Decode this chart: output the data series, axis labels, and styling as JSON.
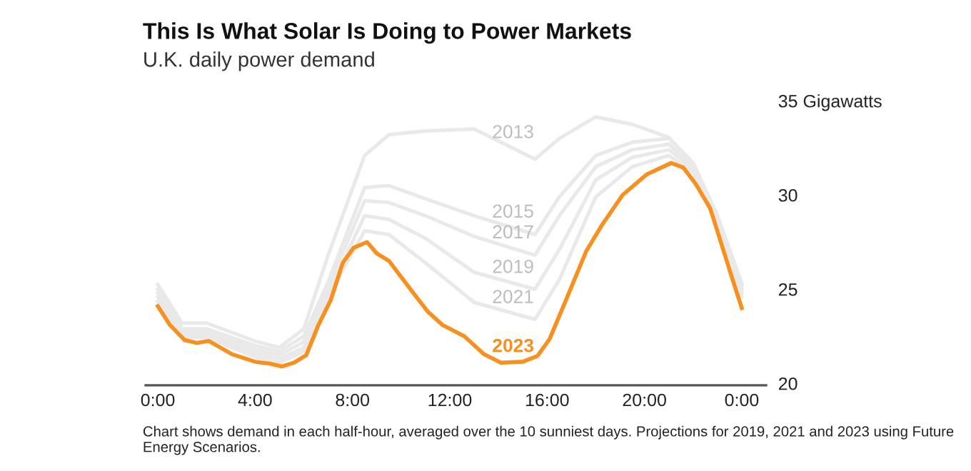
{
  "chart_data": {
    "type": "line",
    "title": "This Is What Solar Is Doing to Power Markets",
    "subtitle": "U.K. daily power demand",
    "annotations": [
      "Chart shows demand in each half-hour, averaged over the 10 sunniest days. Projections for 2019, 2021 and 2023 using Future Energy Scenarios."
    ],
    "xlim": [
      -0.5,
      25
    ],
    "xticks": [
      {
        "value": 0,
        "label": "0:00"
      },
      {
        "value": 4,
        "label": "4:00"
      },
      {
        "value": 8,
        "label": "8:00"
      },
      {
        "value": 12,
        "label": "12:00"
      },
      {
        "value": 16,
        "label": "16:00"
      },
      {
        "value": 20,
        "label": "20:00"
      },
      {
        "value": 24,
        "label": "0:00"
      }
    ],
    "ylim": [
      20,
      35
    ],
    "yticks": [
      20,
      25,
      30,
      {
        "value": 35,
        "label": "35 Gigawatts"
      }
    ],
    "grid": false,
    "legend": false,
    "marker": "none",
    "line_style": "solid",
    "series": [
      {
        "name": "2013",
        "color": "#e9e9e9",
        "x": [
          0,
          1,
          2,
          4,
          5,
          6,
          7,
          8.5,
          9.5,
          11,
          13,
          15.5,
          16.5,
          18,
          19.5,
          21,
          22,
          23,
          24
        ],
        "values": [
          25.35,
          23.3,
          23.3,
          22.35,
          22.0,
          23.0,
          26.9,
          32.2,
          33.3,
          33.5,
          33.6,
          32.0,
          33.1,
          34.25,
          33.85,
          33.15,
          31.8,
          29.0,
          25.4
        ]
      },
      {
        "name": "2015",
        "color": "#e9e9e9",
        "x": [
          0,
          1,
          2,
          4,
          5,
          6,
          7,
          8.5,
          9.5,
          11,
          13,
          15.5,
          16.5,
          18,
          19.5,
          21,
          22,
          23,
          24
        ],
        "values": [
          25.1,
          23.0,
          23.0,
          22.1,
          21.8,
          22.6,
          25.5,
          30.5,
          30.6,
          29.9,
          29.0,
          28.0,
          30.0,
          32.2,
          32.9,
          33.1,
          31.8,
          29.0,
          25.3
        ]
      },
      {
        "name": "2017",
        "color": "#e9e9e9",
        "x": [
          0,
          1,
          2,
          4,
          5,
          6,
          7,
          8.5,
          9.5,
          11,
          13,
          15.5,
          16.5,
          18,
          19.5,
          21,
          22,
          23,
          24
        ],
        "values": [
          24.9,
          22.85,
          22.85,
          21.9,
          21.6,
          22.3,
          25.2,
          29.8,
          29.7,
          29.0,
          27.9,
          26.9,
          29.0,
          31.6,
          32.5,
          32.8,
          31.6,
          28.8,
          25.1
        ]
      },
      {
        "name": "2019",
        "color": "#e9e9e9",
        "x": [
          0,
          1,
          2,
          4,
          5,
          6,
          7,
          8.5,
          9.5,
          11,
          13,
          15.5,
          16.5,
          18,
          19.5,
          21,
          22,
          23,
          24
        ],
        "values": [
          24.7,
          22.7,
          22.7,
          21.7,
          21.4,
          22.0,
          24.9,
          29.0,
          28.8,
          27.8,
          26.0,
          25.1,
          27.2,
          30.9,
          32.1,
          32.5,
          31.5,
          28.6,
          24.9
        ]
      },
      {
        "name": "2021",
        "color": "#e9e9e9",
        "x": [
          0,
          1,
          2,
          4,
          5,
          6,
          7,
          8.5,
          9.5,
          11,
          13,
          15.5,
          16.5,
          18,
          19.5,
          21,
          22,
          23,
          24
        ],
        "values": [
          24.45,
          22.55,
          22.55,
          21.5,
          21.2,
          21.8,
          24.7,
          28.2,
          28.0,
          26.5,
          24.4,
          23.5,
          25.6,
          30.0,
          31.6,
          32.2,
          31.3,
          28.4,
          24.7
        ]
      },
      {
        "name": "2023",
        "color": "#f7901e",
        "x": [
          0,
          0.5,
          1.1,
          1.6,
          2.1,
          3.05,
          4.0,
          4.6,
          5.1,
          5.6,
          6.1,
          6.6,
          7.1,
          7.6,
          8.05,
          8.6,
          9.0,
          9.5,
          10.5,
          11.1,
          11.7,
          12.6,
          13.4,
          14.1,
          15.0,
          15.6,
          16.1,
          16.8,
          17.6,
          18.25,
          19.1,
          20.1,
          21.1,
          21.6,
          22.1,
          22.7,
          23.6,
          24.0
        ],
        "values": [
          24.2,
          23.2,
          22.4,
          22.25,
          22.35,
          21.65,
          21.25,
          21.15,
          21.0,
          21.2,
          21.6,
          23.2,
          24.5,
          26.5,
          27.3,
          27.6,
          27.0,
          26.6,
          24.9,
          23.9,
          23.2,
          22.6,
          21.65,
          21.2,
          21.25,
          21.55,
          22.45,
          24.6,
          27.1,
          28.5,
          30.1,
          31.2,
          31.8,
          31.55,
          30.7,
          29.4,
          25.7,
          24.1
        ]
      }
    ]
  }
}
